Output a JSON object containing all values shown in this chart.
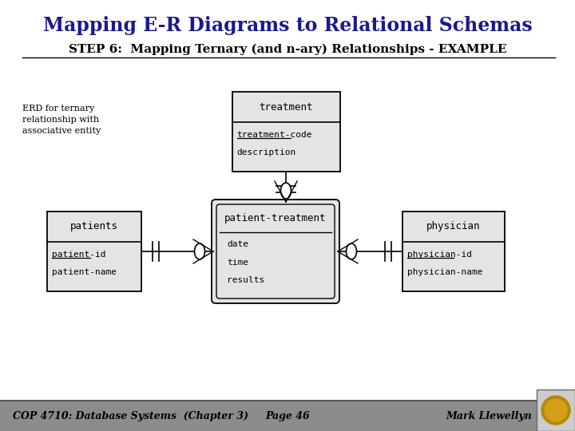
{
  "title": "Mapping E-R Diagrams to Relational Schemas",
  "subtitle": "STEP 6:  Mapping Ternary (and n-ary) Relationships - EXAMPLE",
  "title_color": "#1a1a8c",
  "subtitle_color": "#000000",
  "bg_color": "#ffffff",
  "footer_bg": "#888888",
  "footer_text": "COP 4710: Database Systems  (Chapter 3)",
  "footer_page": "Page 46",
  "footer_author": "Mark Llewellyn",
  "erd_label": "ERD for ternary\nrelationship with\nassociative entity"
}
